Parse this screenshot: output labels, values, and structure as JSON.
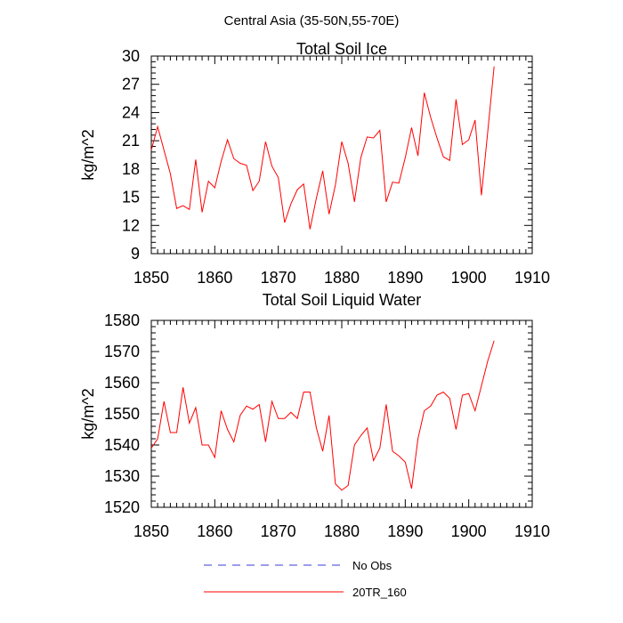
{
  "figure": {
    "title": "Central Asia (35-50N,55-70E)"
  },
  "legend": {
    "items": [
      {
        "label": "No Obs",
        "color": "#3b3bd6",
        "style": "dashed"
      },
      {
        "label": "20TR_160",
        "color": "#ff0000",
        "style": "solid"
      }
    ]
  },
  "chart_data": [
    {
      "type": "line",
      "title": "Total Soil Ice",
      "xlabel": "",
      "ylabel": "kg/m^2",
      "xlim": [
        1850,
        1910
      ],
      "ylim": [
        9,
        30
      ],
      "xticks": [
        1850,
        1860,
        1870,
        1880,
        1890,
        1900,
        1910
      ],
      "yticks": [
        9,
        12,
        15,
        18,
        21,
        24,
        27,
        30
      ],
      "series": [
        {
          "name": "20TR_160",
          "color": "#ff0000",
          "x": [
            1850,
            1851,
            1852,
            1853,
            1854,
            1855,
            1856,
            1857,
            1858,
            1859,
            1860,
            1861,
            1862,
            1863,
            1864,
            1865,
            1866,
            1867,
            1868,
            1869,
            1870,
            1871,
            1872,
            1873,
            1874,
            1875,
            1876,
            1877,
            1878,
            1879,
            1880,
            1881,
            1882,
            1883,
            1884,
            1885,
            1886,
            1887,
            1888,
            1889,
            1890,
            1891,
            1892,
            1893,
            1894,
            1895,
            1896,
            1897,
            1898,
            1899,
            1900,
            1901,
            1902,
            1903,
            1904
          ],
          "values": [
            20.0,
            22.5,
            20.0,
            17.5,
            13.8,
            14.1,
            13.7,
            19.0,
            13.4,
            16.7,
            16.0,
            18.8,
            21.1,
            19.1,
            18.6,
            18.4,
            15.7,
            16.7,
            20.9,
            18.3,
            17.1,
            12.3,
            14.3,
            15.8,
            16.4,
            11.6,
            14.9,
            17.8,
            13.2,
            16.3,
            20.9,
            18.6,
            14.5,
            19.2,
            21.4,
            21.3,
            22.1,
            14.5,
            16.6,
            16.5,
            19.2,
            22.4,
            19.4,
            26.1,
            23.5,
            21.3,
            19.3,
            18.9,
            25.4,
            20.6,
            21.1,
            23.2,
            15.2,
            22.0,
            28.9
          ]
        }
      ]
    },
    {
      "type": "line",
      "title": "Total Soil Liquid Water",
      "xlabel": "",
      "ylabel": "kg/m^2",
      "xlim": [
        1850,
        1910
      ],
      "ylim": [
        1520,
        1580
      ],
      "xticks": [
        1850,
        1860,
        1870,
        1880,
        1890,
        1900,
        1910
      ],
      "yticks": [
        1520,
        1530,
        1540,
        1550,
        1560,
        1570,
        1580
      ],
      "series": [
        {
          "name": "20TR_160",
          "color": "#ff0000",
          "x": [
            1850,
            1851,
            1852,
            1853,
            1854,
            1855,
            1856,
            1857,
            1858,
            1859,
            1860,
            1861,
            1862,
            1863,
            1864,
            1865,
            1866,
            1867,
            1868,
            1869,
            1870,
            1871,
            1872,
            1873,
            1874,
            1875,
            1876,
            1877,
            1878,
            1879,
            1880,
            1881,
            1882,
            1883,
            1884,
            1885,
            1886,
            1887,
            1888,
            1889,
            1890,
            1891,
            1892,
            1893,
            1894,
            1895,
            1896,
            1897,
            1898,
            1899,
            1900,
            1901,
            1902,
            1903,
            1904
          ],
          "values": [
            1539.0,
            1542.0,
            1554.0,
            1544.0,
            1544.0,
            1558.5,
            1547.0,
            1552.0,
            1540.0,
            1540.0,
            1536.0,
            1551.0,
            1545.0,
            1541.0,
            1549.5,
            1552.5,
            1551.5,
            1553.0,
            1541.0,
            1554.0,
            1548.5,
            1548.5,
            1550.5,
            1548.5,
            1557.0,
            1557.0,
            1545.5,
            1538.0,
            1549.5,
            1527.5,
            1525.5,
            1527.0,
            1540.0,
            1543.0,
            1545.5,
            1535.0,
            1539.0,
            1553.0,
            1538.0,
            1536.5,
            1534.5,
            1526.0,
            1542.0,
            1551.0,
            1552.5,
            1556.0,
            1557.0,
            1555.0,
            1545.0,
            1556.0,
            1556.5,
            1551.0,
            1559.0,
            1567.0,
            1573.5
          ]
        }
      ]
    }
  ]
}
